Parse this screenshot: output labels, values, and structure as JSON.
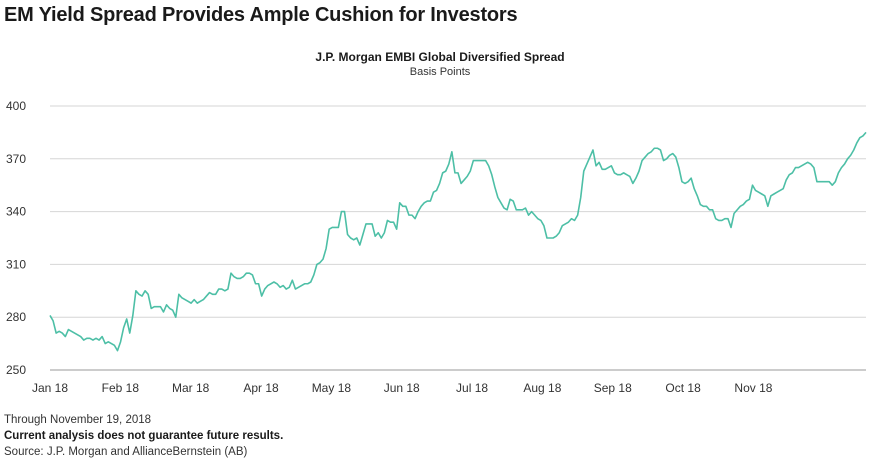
{
  "headline": "EM Yield Spread Provides Ample Cushion for Investors",
  "footer": {
    "through": "Through November 19, 2018",
    "disclaimer": "Current analysis does not guarantee future results.",
    "source": "Source: J.P. Morgan and AllianceBernstein (AB)"
  },
  "chart_data": {
    "type": "line",
    "title": "J.P. Morgan EMBI Global Diversified Spread",
    "subtitle": "Basis Points",
    "xlabel": "",
    "ylabel": "",
    "ylim": [
      250,
      400
    ],
    "yticks": [
      250,
      280,
      310,
      340,
      370,
      400
    ],
    "xticks": [
      "Jan 18",
      "Feb 18",
      "Mar 18",
      "Apr 18",
      "May 18",
      "Jun 18",
      "Jul 18",
      "Aug 18",
      "Sep 18",
      "Oct 18",
      "Nov 18"
    ],
    "grid": true,
    "legend": "none",
    "line_color": "#4dbfa6",
    "series": [
      {
        "values": [
          281,
          278,
          271,
          272,
          271,
          269,
          273,
          272,
          271,
          270,
          269,
          267,
          268,
          268,
          267,
          268,
          267,
          269,
          265,
          266,
          265,
          264,
          261,
          266,
          274,
          279,
          271,
          281,
          295,
          293,
          292,
          295,
          293,
          285,
          286,
          286,
          286,
          283,
          287,
          285,
          284,
          280,
          293,
          291,
          290,
          289,
          288,
          290,
          288,
          289,
          290,
          292,
          294,
          293,
          293,
          296,
          296,
          295,
          296,
          305,
          303,
          302,
          302,
          303,
          305,
          305,
          304,
          299,
          299,
          292,
          296,
          298,
          299,
          300,
          299,
          297,
          298,
          296,
          297,
          301,
          296,
          297,
          298,
          299,
          299,
          300,
          304,
          310,
          311,
          313,
          319,
          330,
          331,
          331,
          331,
          340,
          340,
          327,
          325,
          324,
          325,
          321,
          327,
          333,
          333,
          333,
          326,
          328,
          325,
          328,
          335,
          334,
          334,
          330,
          345,
          343,
          343,
          338,
          338,
          336,
          340,
          343,
          345,
          346,
          346,
          351,
          352,
          356,
          362,
          363,
          367,
          374,
          362,
          362,
          356,
          358,
          360,
          363,
          369,
          369,
          369,
          369,
          369,
          366,
          361,
          354,
          348,
          345,
          342,
          341,
          347,
          346,
          341,
          341,
          341,
          342,
          338,
          340,
          338,
          336,
          335,
          332,
          325,
          325,
          325,
          326,
          328,
          332,
          333,
          334,
          336,
          335,
          338,
          348,
          363,
          367,
          371,
          375,
          366,
          368,
          364,
          364,
          365,
          366,
          362,
          361,
          361,
          362,
          361,
          360,
          356,
          359,
          363,
          369,
          371,
          373,
          374,
          376,
          376,
          375,
          369,
          370,
          372,
          373,
          371,
          365,
          357,
          356,
          357,
          359,
          353,
          349,
          344,
          343,
          343,
          341,
          341,
          336,
          335,
          335,
          336,
          336,
          331,
          339,
          341,
          343,
          344,
          346,
          347,
          355,
          352,
          351,
          350,
          349,
          343,
          349,
          350,
          351,
          352,
          353,
          358,
          361,
          362,
          365,
          365,
          366,
          367,
          368,
          367,
          365,
          357,
          357,
          357,
          357,
          357,
          355,
          357,
          362,
          365,
          367,
          370,
          372,
          375,
          379,
          382,
          383,
          385
        ]
      }
    ]
  }
}
